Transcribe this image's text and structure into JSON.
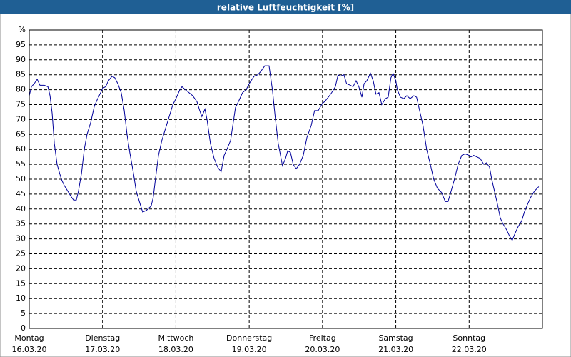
{
  "chart_data": {
    "type": "line",
    "title": "relative Luftfeuchtigkeit [%]",
    "color": "#00009a",
    "xlim": [
      0,
      168
    ],
    "xticks": [
      {
        "value": 0,
        "label": "Montag",
        "sublabel": "16.03.20"
      },
      {
        "value": 24,
        "label": "Dienstag",
        "sublabel": "17.03.20"
      },
      {
        "value": 48,
        "label": "Mittwoch",
        "sublabel": "18.03.20"
      },
      {
        "value": 72,
        "label": "Donnerstag",
        "sublabel": "19.03.20"
      },
      {
        "value": 96,
        "label": "Freitag",
        "sublabel": "20.03.20"
      },
      {
        "value": 120,
        "label": "Samstag",
        "sublabel": "21.03.20"
      },
      {
        "value": 144,
        "label": "Sonntag",
        "sublabel": "22.03.20"
      }
    ],
    "ylim": [
      0,
      100
    ],
    "yticks": [
      0,
      5,
      10,
      15,
      20,
      25,
      30,
      35,
      40,
      45,
      50,
      55,
      60,
      65,
      70,
      75,
      80,
      85,
      90,
      95,
      {
        "value": 100,
        "label": "%"
      }
    ],
    "grid": true,
    "x": [
      0,
      0.7,
      1.6,
      2.6,
      3.5,
      4.9,
      6.1,
      6.8,
      7.5,
      8.2,
      9.1,
      10.5,
      11.4,
      12.6,
      13.8,
      14.5,
      15.4,
      16.1,
      17.1,
      18,
      18.9,
      20.1,
      21.3,
      22.4,
      23.6,
      24,
      25,
      25.9,
      27.1,
      28,
      29,
      30.1,
      31.1,
      32,
      32.9,
      34.1,
      35,
      36.2,
      37.1,
      38.3,
      39.9,
      40.6,
      41.3,
      42.3,
      43.4,
      44.6,
      45.8,
      47,
      48,
      49.3,
      50,
      51.1,
      52.3,
      53.5,
      54.9,
      55.8,
      56.5,
      57.5,
      58.2,
      59.3,
      60.5,
      61.7,
      62.8,
      63.8,
      64.7,
      65.9,
      67.5,
      68.7,
      69.8,
      71,
      72,
      72.6,
      73.6,
      74.8,
      75.7,
      77.1,
      78.5,
      79.6,
      80.6,
      81.5,
      82.9,
      83.9,
      84.6,
      85.5,
      86.4,
      87.4,
      88.5,
      89.7,
      90.9,
      92.3,
      93.4,
      94.6,
      96,
      96.7,
      97.9,
      99,
      100.2,
      101.1,
      101.8,
      103,
      103.9,
      105.1,
      106,
      107,
      107.9,
      108.9,
      109.6,
      110.5,
      111.7,
      112.6,
      113.5,
      114.5,
      115.4,
      116.6,
      117.5,
      118.4,
      119.1,
      120,
      120.5,
      121.5,
      122.6,
      123.6,
      124.7,
      125.9,
      126.8,
      127.8,
      128.9,
      130.1,
      131.3,
      132.4,
      133.6,
      135,
      136.2,
      137.1,
      138.1,
      139.2,
      140.4,
      141.6,
      142.7,
      144,
      144.6,
      145.5,
      146.5,
      147.6,
      148.8,
      149.7,
      150.7,
      151.4,
      152.3,
      153.2,
      154.2,
      155.1,
      156.3,
      157.2,
      158.1,
      159.1,
      160,
      161.2,
      162.1,
      163.3,
      164.2,
      165.4,
      166.8
    ],
    "values": [
      78,
      81,
      82,
      83.5,
      81.5,
      81.5,
      81,
      78,
      72,
      62,
      55,
      50,
      48,
      46,
      44,
      43,
      43,
      46,
      52,
      60,
      65,
      69,
      74.5,
      77,
      79.5,
      80.5,
      81,
      83,
      84.5,
      84,
      82,
      79,
      73,
      65,
      59,
      52,
      46,
      42,
      39,
      39.5,
      41,
      44,
      50,
      58,
      63,
      67,
      71,
      75,
      77,
      80,
      81,
      80,
      79,
      78,
      76,
      73,
      71,
      73.5,
      70,
      62,
      57,
      54,
      52.5,
      58,
      60,
      63,
      74,
      76.5,
      79,
      80,
      82,
      83,
      84.5,
      85,
      86,
      88,
      88,
      80,
      70,
      62,
      54.5,
      57,
      59.5,
      59,
      55,
      53.5,
      55,
      58,
      64,
      68,
      73,
      73,
      75.5,
      76,
      77.5,
      79,
      81,
      85,
      84.5,
      85,
      82,
      81.5,
      81,
      83,
      81,
      77.5,
      82,
      83,
      85.5,
      83,
      78.5,
      79,
      75,
      77,
      77.5,
      84,
      85.5,
      83,
      80,
      77.5,
      77,
      78,
      77,
      78,
      77.5,
      73,
      68,
      60,
      55,
      50,
      47,
      45.5,
      42.5,
      42.5,
      46,
      50,
      55,
      58,
      58.5,
      58,
      57.5,
      58,
      57.5,
      57,
      55,
      55.5,
      54,
      50,
      46,
      42,
      37,
      35,
      33,
      31,
      29.5,
      32,
      34,
      36,
      39,
      42,
      44,
      46,
      47.5
    ]
  }
}
